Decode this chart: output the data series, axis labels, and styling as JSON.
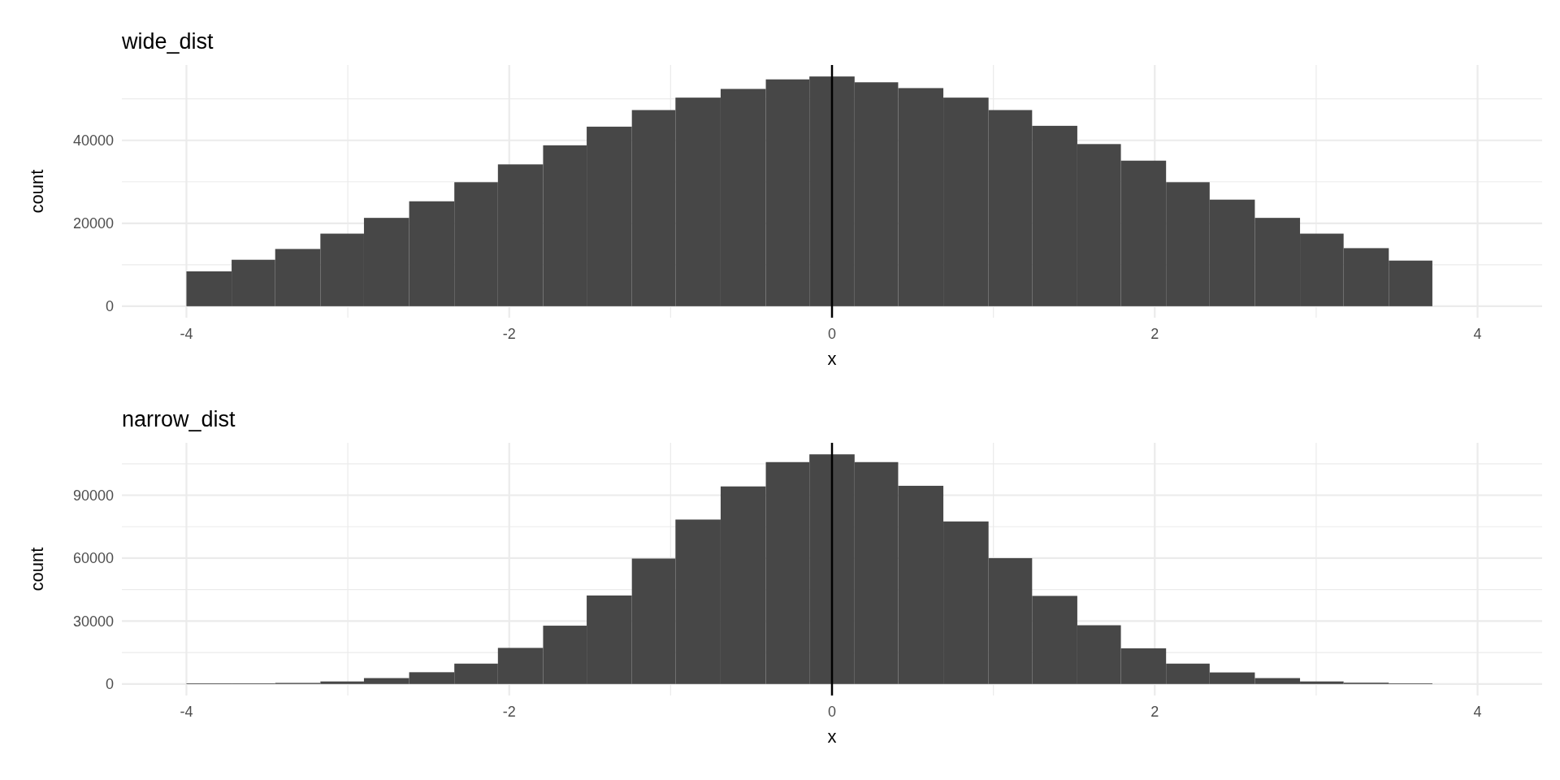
{
  "chart_data": [
    {
      "type": "histogram",
      "title": "wide_dist",
      "xlabel": "x",
      "ylabel": "count",
      "color": "#474747",
      "bins": [
        -4,
        -3.72,
        -3.45,
        -3.17,
        -2.9,
        -2.62,
        -2.34,
        -2.07,
        -1.79,
        -1.52,
        -1.24,
        -0.97,
        -0.69,
        -0.41,
        -0.14,
        0.14,
        0.41,
        0.69,
        0.97,
        1.24,
        1.52,
        1.79,
        2.07,
        2.34,
        2.62,
        2.9,
        3.17,
        3.45,
        3.72
      ],
      "values": [
        8400,
        11200,
        13800,
        17500,
        21300,
        25300,
        29900,
        34200,
        38800,
        43300,
        47300,
        50300,
        52400,
        54700,
        55400,
        54000,
        52600,
        50300,
        47300,
        43500,
        39100,
        35100,
        29900,
        25700,
        21300,
        17500,
        14000,
        11000
      ],
      "xlim": [
        -4.4,
        4.4
      ],
      "xticks": [
        -4,
        {
          "value": -3,
          "label": null
        },
        -2,
        {
          "value": -1,
          "label": null
        },
        0,
        {
          "value": 1,
          "label": null
        },
        2,
        {
          "value": 3,
          "label": null
        },
        4
      ],
      "ylim": [
        -2770,
        58170
      ],
      "yticks": [
        0,
        {
          "value": 10000,
          "label": null
        },
        20000,
        {
          "value": 30000,
          "label": null
        },
        40000,
        {
          "value": 50000,
          "label": null
        }
      ],
      "grid": true,
      "ref_lines": [
        {
          "axis": "x",
          "value": 0,
          "color": "#000000"
        }
      ]
    },
    {
      "type": "histogram",
      "title": "narrow_dist",
      "xlabel": "x",
      "ylabel": "count",
      "color": "#474747",
      "bins": [
        -4,
        -3.72,
        -3.45,
        -3.17,
        -2.9,
        -2.62,
        -2.34,
        -2.07,
        -1.79,
        -1.52,
        -1.24,
        -0.97,
        -0.69,
        -0.41,
        -0.14,
        0.14,
        0.41,
        0.69,
        0.97,
        1.24,
        1.52,
        1.79,
        2.07,
        2.34,
        2.62,
        2.9,
        3.17,
        3.45,
        3.72
      ],
      "values": [
        300,
        300,
        500,
        1200,
        2800,
        5600,
        9700,
        17200,
        27800,
        42200,
        59800,
        78400,
        94200,
        105800,
        109500,
        105800,
        94500,
        77500,
        60000,
        42000,
        28000,
        17000,
        9700,
        5500,
        2800,
        1200,
        600,
        300
      ],
      "xlim": [
        -4.4,
        4.4
      ],
      "xticks": [
        -4,
        {
          "value": -3,
          "label": null
        },
        -2,
        {
          "value": -1,
          "label": null
        },
        0,
        {
          "value": 1,
          "label": null
        },
        2,
        {
          "value": 3,
          "label": null
        },
        4
      ],
      "ylim": [
        -5500,
        115000
      ],
      "yticks": [
        0,
        {
          "value": 15000,
          "label": null
        },
        30000,
        {
          "value": 45000,
          "label": null
        },
        60000,
        {
          "value": 75000,
          "label": null
        },
        90000,
        {
          "value": 105000,
          "label": null
        }
      ],
      "grid": true,
      "ref_lines": [
        {
          "axis": "x",
          "value": 0,
          "color": "#000000"
        }
      ]
    }
  ]
}
